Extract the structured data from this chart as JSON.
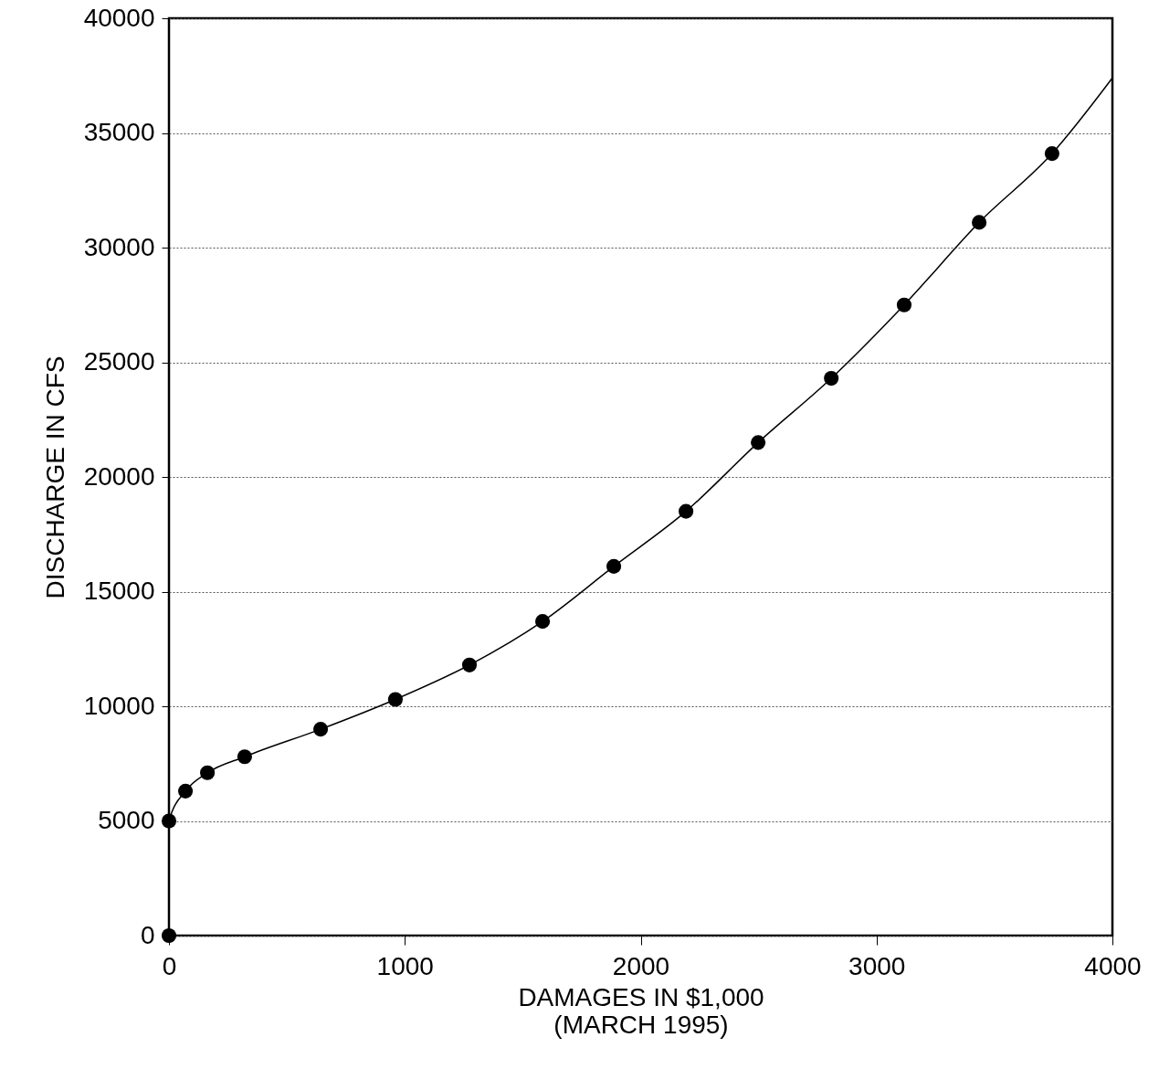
{
  "chart_data": {
    "type": "scatter",
    "xlabel": "DAMAGES IN $1,000",
    "ylabel": "DISCHARGE IN CFS",
    "annotations": [
      "(MARCH 1995)"
    ],
    "xlim": [
      0,
      4000
    ],
    "xticks": [
      0,
      1000,
      2000,
      3000,
      4000
    ],
    "ylim": [
      0,
      40000
    ],
    "yticks": [
      0,
      5000,
      10000,
      15000,
      20000,
      25000,
      30000,
      35000,
      40000
    ],
    "grid": "y",
    "series": [
      {
        "marker": "circle",
        "color": "#000000",
        "x": [
          0,
          0,
          70,
          163,
          321,
          643,
          960,
          1274,
          1584,
          1886,
          2192,
          2498,
          2808,
          3117,
          3435,
          3744
        ],
        "values": [
          0,
          5000,
          6300,
          7100,
          7800,
          9000,
          10300,
          11800,
          13700,
          16100,
          18500,
          21500,
          24300,
          27500,
          31100,
          34100
        ]
      },
      {
        "type": "line",
        "color": "#000000",
        "line_style": "solid",
        "x": [
          0,
          0,
          70,
          163,
          321,
          643,
          960,
          1274,
          1584,
          1886,
          2192,
          2498,
          2808,
          3117,
          3435,
          3744,
          4000
        ],
        "values": [
          0,
          5000,
          6300,
          7100,
          7800,
          9000,
          10300,
          11800,
          13700,
          16100,
          18500,
          21500,
          24300,
          27500,
          31100,
          34100,
          37400
        ]
      }
    ]
  }
}
